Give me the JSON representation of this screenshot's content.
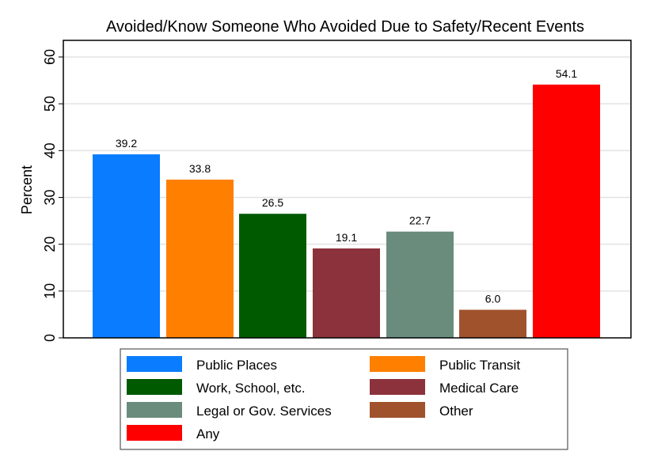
{
  "chart_data": {
    "type": "bar",
    "title": "Avoided/Know Someone Who Avoided Due to Safety/Recent Events",
    "xlabel": "",
    "ylabel": "Percent",
    "ylim": [
      0,
      60
    ],
    "yticks": [
      0,
      10,
      20,
      30,
      40,
      50,
      60
    ],
    "grid": true,
    "legend_position": "bottom",
    "categories": [
      "Public Places",
      "Public Transit",
      "Work, School, etc.",
      "Medical Care",
      "Legal or Gov. Services",
      "Other",
      "Any"
    ],
    "values": [
      39.2,
      33.8,
      26.5,
      19.1,
      22.7,
      6.0,
      54.1
    ],
    "labels": [
      "39.2",
      "33.8",
      "26.5",
      "19.1",
      "22.7",
      "6.0",
      "54.1"
    ],
    "colors": [
      "#0a7cff",
      "#ff7f00",
      "#005a00",
      "#8c323c",
      "#6a8c7c",
      "#a0522d",
      "#ff0000"
    ],
    "legend_order": [
      0,
      1,
      2,
      3,
      4,
      5,
      6
    ]
  }
}
